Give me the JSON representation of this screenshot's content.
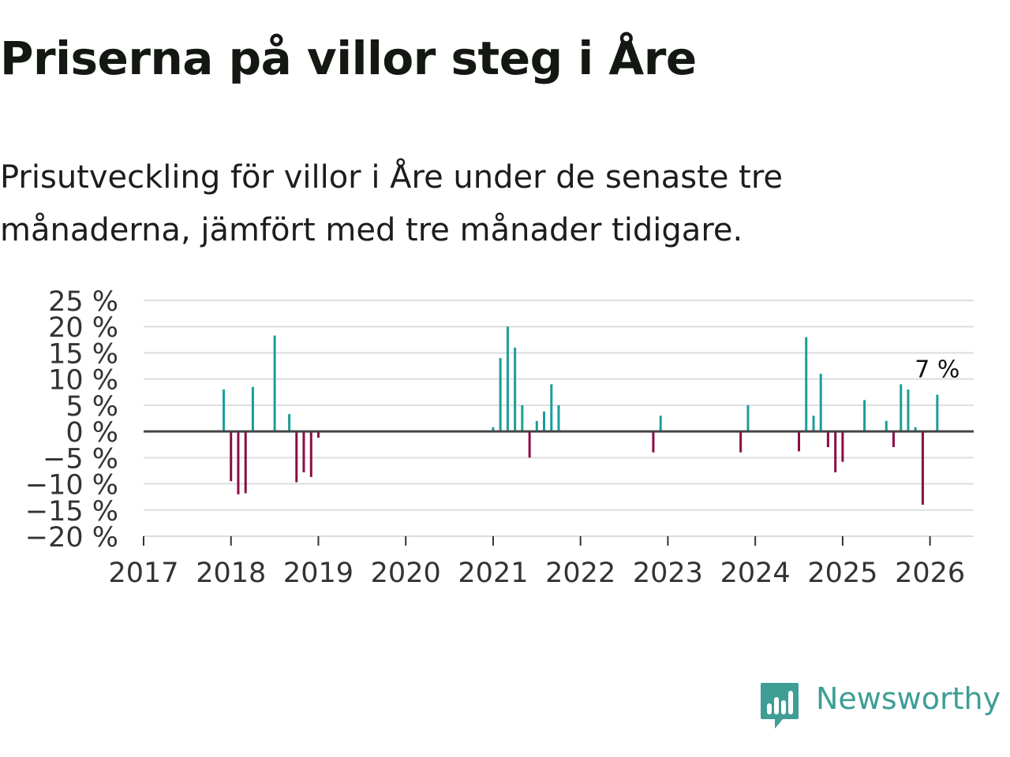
{
  "title": "Priserna på villor steg i Åre",
  "subtitle": "Prisutveckling för villor i Åre under de senaste tre månaderna, jämfört med tre månader tidigare.",
  "brand": {
    "name": "Newsworthy",
    "icon": "newsworthy-bar-chart-icon",
    "color": "#3e9e96"
  },
  "colors": {
    "positive": "#1a9e9a",
    "negative": "#8b0d45",
    "grid": "#dddddd",
    "zero": "#444444"
  },
  "chart_data": {
    "type": "bar",
    "title": "Priserna på villor steg i Åre",
    "xlabel": "",
    "ylabel": "",
    "ylim": [
      -20,
      25
    ],
    "yticks": [
      25,
      20,
      15,
      10,
      5,
      0,
      -5,
      -10,
      -15,
      -20
    ],
    "ytick_labels": [
      "25 %",
      "20 %",
      "15 %",
      "10 %",
      "5 %",
      "0 %",
      "−5 %",
      "−10 %",
      "−15 %",
      "−20 %"
    ],
    "xlim": [
      2017.0,
      2026.5
    ],
    "xticks": [
      2017,
      2018,
      2019,
      2020,
      2021,
      2022,
      2023,
      2024,
      2025,
      2026
    ],
    "xtick_labels": [
      "2017",
      "2018",
      "2019",
      "2020",
      "2021",
      "2022",
      "2023",
      "2024",
      "2025",
      "2026"
    ],
    "grid": true,
    "annotation": {
      "x": 2026.083,
      "value": 7,
      "text": "7 %"
    },
    "points": [
      {
        "x": 2017.917,
        "value": 8
      },
      {
        "x": 2018.0,
        "value": -9.5
      },
      {
        "x": 2018.083,
        "value": -12
      },
      {
        "x": 2018.167,
        "value": -11.8
      },
      {
        "x": 2018.25,
        "value": 8.5
      },
      {
        "x": 2018.5,
        "value": 18.3
      },
      {
        "x": 2018.667,
        "value": 3.3
      },
      {
        "x": 2018.75,
        "value": -9.7
      },
      {
        "x": 2018.833,
        "value": -7.8
      },
      {
        "x": 2018.917,
        "value": -8.7
      },
      {
        "x": 2019.0,
        "value": -1.2
      },
      {
        "x": 2021.0,
        "value": 0.8
      },
      {
        "x": 2021.083,
        "value": 14
      },
      {
        "x": 2021.167,
        "value": 20
      },
      {
        "x": 2021.25,
        "value": 16
      },
      {
        "x": 2021.333,
        "value": 5
      },
      {
        "x": 2021.417,
        "value": -5
      },
      {
        "x": 2021.5,
        "value": 2
      },
      {
        "x": 2021.583,
        "value": 3.8
      },
      {
        "x": 2021.667,
        "value": 9
      },
      {
        "x": 2021.75,
        "value": 5
      },
      {
        "x": 2022.833,
        "value": -4
      },
      {
        "x": 2022.917,
        "value": 3
      },
      {
        "x": 2023.833,
        "value": -4
      },
      {
        "x": 2023.917,
        "value": 5
      },
      {
        "x": 2024.5,
        "value": -3.8
      },
      {
        "x": 2024.583,
        "value": 18
      },
      {
        "x": 2024.667,
        "value": 3
      },
      {
        "x": 2024.75,
        "value": 11
      },
      {
        "x": 2024.833,
        "value": -3
      },
      {
        "x": 2024.917,
        "value": -7.8
      },
      {
        "x": 2025.0,
        "value": -5.8
      },
      {
        "x": 2025.25,
        "value": 6
      },
      {
        "x": 2025.5,
        "value": 2
      },
      {
        "x": 2025.583,
        "value": -3
      },
      {
        "x": 2025.667,
        "value": 9
      },
      {
        "x": 2025.75,
        "value": 8
      },
      {
        "x": 2025.833,
        "value": 0.8
      },
      {
        "x": 2025.917,
        "value": -14
      },
      {
        "x": 2026.083,
        "value": 7
      }
    ]
  }
}
